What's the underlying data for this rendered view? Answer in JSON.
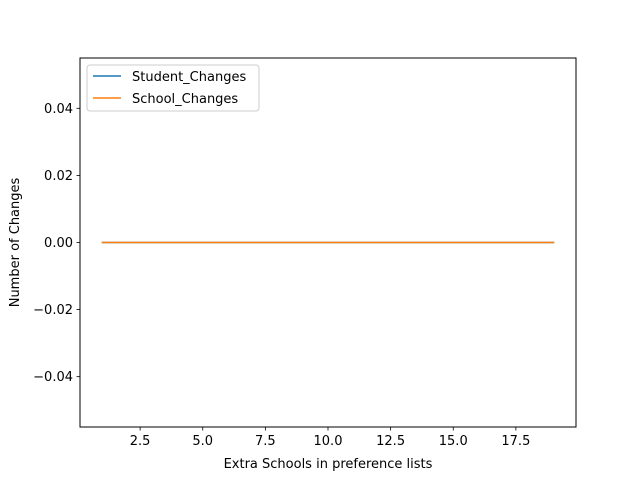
{
  "chart_data": {
    "type": "line",
    "xlabel": "Extra Schools in preference lists",
    "ylabel": "Number of Changes",
    "xlim": [
      0.1,
      19.9
    ],
    "ylim": [
      -0.055,
      0.055
    ],
    "xticks": [
      2.5,
      5.0,
      7.5,
      10.0,
      12.5,
      15.0,
      17.5
    ],
    "xtick_labels": [
      "2.5",
      "5.0",
      "7.5",
      "10.0",
      "12.5",
      "15.0",
      "17.5"
    ],
    "yticks": [
      -0.04,
      -0.02,
      0.0,
      0.02,
      0.04
    ],
    "ytick_labels": [
      "−0.04",
      "−0.02",
      "0.00",
      "0.02",
      "0.04"
    ],
    "grid": false,
    "legend_position": "top-left",
    "x": [
      1,
      2,
      3,
      4,
      5,
      6,
      7,
      8,
      9,
      10,
      11,
      12,
      13,
      14,
      15,
      16,
      17,
      18,
      19
    ],
    "series": [
      {
        "name": "Student_Changes",
        "color": "#1f77b4",
        "values": [
          0,
          0,
          0,
          0,
          0,
          0,
          0,
          0,
          0,
          0,
          0,
          0,
          0,
          0,
          0,
          0,
          0,
          0,
          0
        ]
      },
      {
        "name": "School_Changes",
        "color": "#ff7f0e",
        "values": [
          0,
          0,
          0,
          0,
          0,
          0,
          0,
          0,
          0,
          0,
          0,
          0,
          0,
          0,
          0,
          0,
          0,
          0,
          0
        ]
      }
    ]
  }
}
